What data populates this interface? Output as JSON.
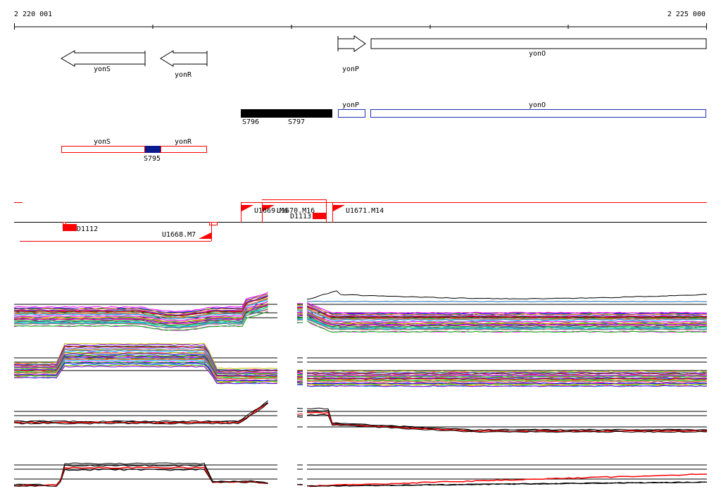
{
  "ruler": {
    "start_label": "2 220 001",
    "end_label": "2 225 000"
  },
  "genes_strand": [
    {
      "name": "yonS",
      "dir": "left"
    },
    {
      "name": "yonR",
      "dir": "left"
    },
    {
      "name": "yonP",
      "dir": "right"
    },
    {
      "name": "yonO",
      "dir": "right"
    }
  ],
  "genes_blue_track": [
    {
      "name": "yonP"
    },
    {
      "name": "yonO"
    }
  ],
  "black_block_labels": [
    "S796",
    "S797"
  ],
  "red_track": {
    "genes": [
      "yonS",
      "yonR"
    ],
    "segment_label": "S795"
  },
  "transcripts": [
    {
      "label": "U1669.M6"
    },
    {
      "label": "U1670.M16"
    },
    {
      "label": "U1671.M14"
    },
    {
      "label": "U1668.M7"
    }
  ],
  "red_boxes": [
    {
      "label": "D1112"
    },
    {
      "label": "D1113"
    }
  ],
  "colors": {
    "red": "#ff0000",
    "blue": "#1f2fb5",
    "navy": "#0b1a8c",
    "black": "#000000"
  }
}
